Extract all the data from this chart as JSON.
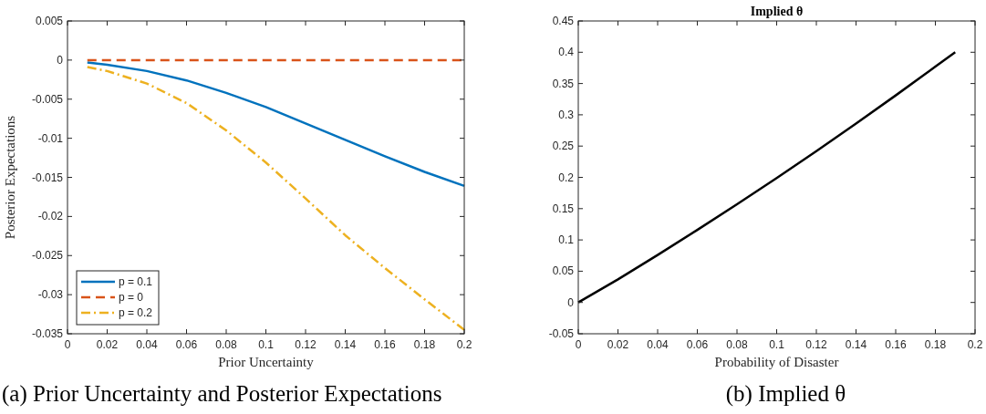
{
  "chart_data": [
    {
      "type": "line",
      "xlabel": "Prior Uncertainty",
      "ylabel": "Posterior Expectations",
      "annotations": [
        "(a) Prior Uncertainty and Posterior Expectations"
      ],
      "xlim": [
        0,
        0.2
      ],
      "ylim": [
        -0.035,
        0.005
      ],
      "xticks": [
        0,
        0.02,
        0.04,
        0.06,
        0.08,
        0.1,
        0.12,
        0.14,
        0.16,
        0.18,
        0.2
      ],
      "yticks": [
        -0.035,
        -0.03,
        -0.025,
        -0.02,
        -0.015,
        -0.01,
        -0.005,
        0,
        0.005
      ],
      "grid": false,
      "legend": "bottom left",
      "x": [
        0.01,
        0.02,
        0.04,
        0.06,
        0.08,
        0.1,
        0.12,
        0.14,
        0.16,
        0.18,
        0.2
      ],
      "series": [
        {
          "name": "p = 0.1",
          "color": "#0072bd",
          "line_style": "solid",
          "values": [
            -0.0003,
            -0.0006,
            -0.0014,
            -0.0026,
            -0.0042,
            -0.006,
            -0.0081,
            -0.0102,
            -0.0123,
            -0.0143,
            -0.0161
          ]
        },
        {
          "name": "p = 0",
          "color": "#d95319",
          "line_style": "dashed",
          "values": [
            0,
            0,
            0,
            0,
            0,
            0,
            0,
            0,
            0,
            0,
            0
          ]
        },
        {
          "name": "p = 0.2",
          "color": "#edb120",
          "line_style": "dashdot",
          "values": [
            -0.0009,
            -0.0014,
            -0.003,
            -0.0055,
            -0.009,
            -0.0131,
            -0.0177,
            -0.0224,
            -0.0266,
            -0.0306,
            -0.0345
          ]
        }
      ]
    },
    {
      "type": "line",
      "title": "Implied θ",
      "xlabel": "Probability of Disaster",
      "annotations": [
        "(b) Implied θ"
      ],
      "xlim": [
        0,
        0.2
      ],
      "ylim": [
        -0.05,
        0.45
      ],
      "xticks": [
        0,
        0.02,
        0.04,
        0.06,
        0.08,
        0.1,
        0.12,
        0.14,
        0.16,
        0.18,
        0.2
      ],
      "yticks": [
        -0.05,
        0,
        0.05,
        0.1,
        0.15,
        0.2,
        0.25,
        0.3,
        0.35,
        0.4,
        0.45
      ],
      "grid": false,
      "x": [
        0,
        0.02,
        0.04,
        0.06,
        0.08,
        0.1,
        0.12,
        0.14,
        0.16,
        0.18,
        0.19
      ],
      "series": [
        {
          "color": "#000000",
          "line_style": "solid",
          "values": [
            0,
            0.037,
            0.076,
            0.116,
            0.157,
            0.199,
            0.242,
            0.286,
            0.331,
            0.377,
            0.4
          ]
        }
      ]
    }
  ]
}
